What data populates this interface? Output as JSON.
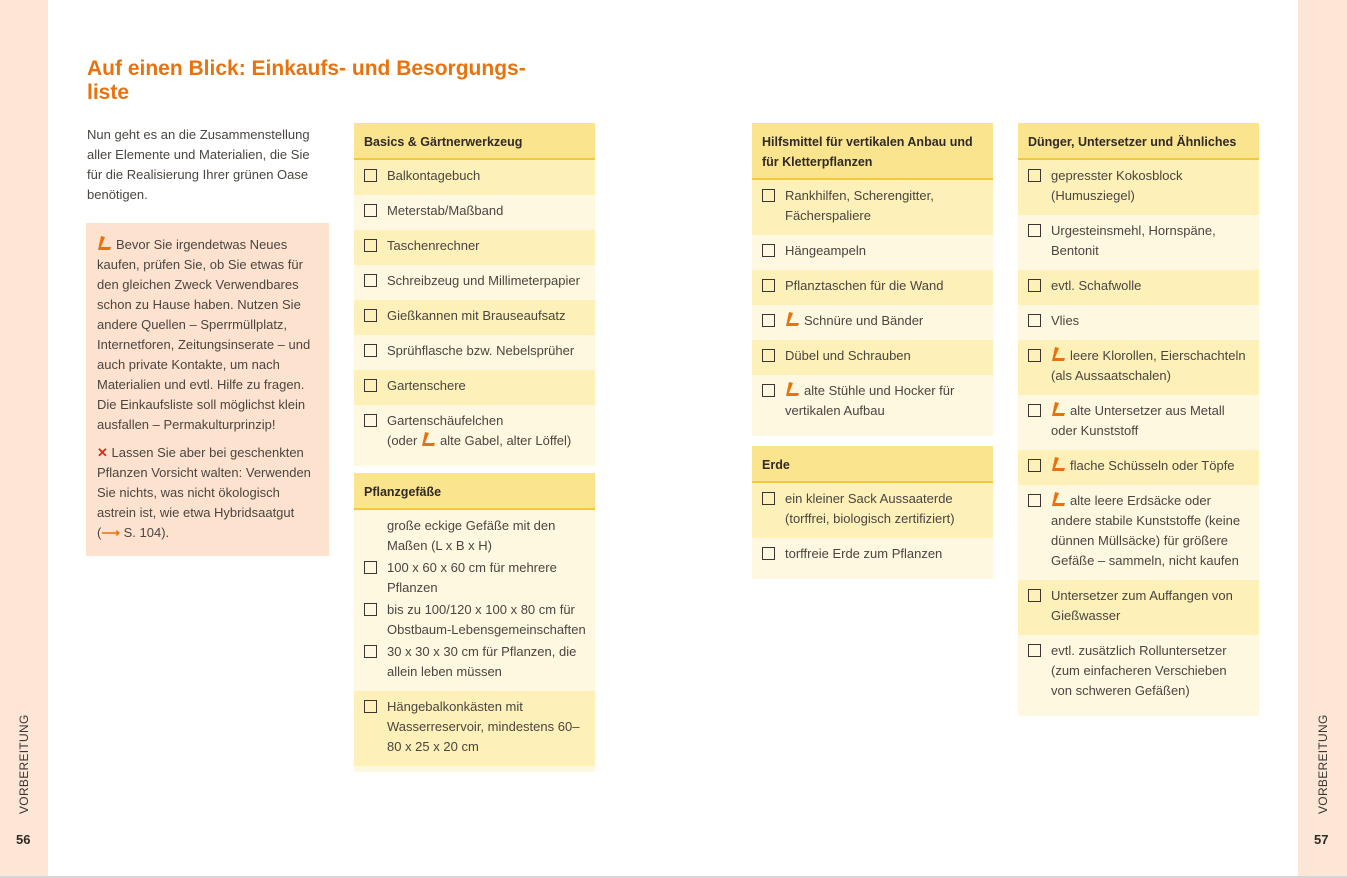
{
  "page_left": {
    "section": "VORBEREITUNG",
    "number": "56"
  },
  "page_right": {
    "section": "VORBEREITUNG",
    "number": "57"
  },
  "title_line1": "Auf einen Blick: Einkaufs- und Besorgungs-",
  "title_line2": "liste",
  "intro": "Nun geht es an die Zusammenstellung aller Elemente und Materialien, die Sie für die Realisierung Ihrer grünen Oase benötigen.",
  "tip": {
    "recycle_text": "Bevor Sie irgendetwas Neues kaufen, prüfen Sie, ob Sie etwas für den gleichen Zweck Verwendbares schon zu Hause haben. Nutzen Sie andere Quellen – Sperrmüllplatz, Internetforen, Zeitungsinserate – und auch private Kontakte, um nach Materialien und evtl. Hilfe zu fragen. Die Einkaufsliste soll möglichst klein ausfallen – Permakulturprinzip!",
    "warning_text": "Lassen Sie aber bei geschenkten Pflanzen Vorsicht walten: Verwenden Sie nichts, was nicht ökologisch astrein ist, wie etwa Hybridsaatgut (",
    "warning_ref": "S. 104)."
  },
  "colors": {
    "accent": "#e8730e",
    "header": "#fbe48e",
    "row_dark": "#fdf0b8",
    "row_light": "#fef8e0",
    "margin": "#fde6d6",
    "tip_bg": "#fde3cf"
  },
  "icons": {
    "recycle": "orange-reuse-icon",
    "warning": "red-x-icon",
    "arrow": "orange-arrow-icon"
  },
  "lists": [
    {
      "title": "Basics & Gärtnerwerkzeug",
      "rows": [
        {
          "items": [
            {
              "text": "Balkontagebuch"
            }
          ]
        },
        {
          "items": [
            {
              "text": "Meterstab/Maßband"
            }
          ]
        },
        {
          "items": [
            {
              "text": "Taschenrechner"
            }
          ]
        },
        {
          "items": [
            {
              "text": "Schreibzeug und Millimeterpapier"
            }
          ]
        },
        {
          "items": [
            {
              "text": "Gießkannen mit Brauseaufsatz"
            }
          ]
        },
        {
          "items": [
            {
              "text": "Sprühflasche bzw. Nebelsprüher"
            }
          ]
        },
        {
          "items": [
            {
              "text": "Gartenschere"
            }
          ]
        },
        {
          "items": [
            {
              "text": "Gartenschäufelchen",
              "sub_pre": "(oder ",
              "sub_recycle": "alte Gabel, alter Löffel)"
            }
          ]
        }
      ]
    },
    {
      "title": "Pflanzgefäße",
      "rows": [
        {
          "items": [
            {
              "text": "große eckige Gefäße mit den Maßen (L x B x H)",
              "nocheck": true
            },
            {
              "text": "100 x 60 x 60 cm für mehrere Pflanzen"
            },
            {
              "text": "bis zu 100/120 x 100 x 80 cm für Obstbaum-Lebensgemeinschaften"
            },
            {
              "text": "30 x 30 x 30 cm für Pflanzen, die allein leben müssen"
            }
          ],
          "tone": "l"
        },
        {
          "items": [
            {
              "text": "Hängebalkonkästen mit Wasserreservoir, mindestens 60–80 x 25 x 20 cm"
            }
          ],
          "tone": "d"
        }
      ]
    },
    {
      "title": "Hilfsmittel für vertikalen Anbau und für Kletterpflanzen",
      "rows": [
        {
          "items": [
            {
              "text": "Rankhilfen, Scherengitter, Fächerspaliere"
            }
          ]
        },
        {
          "items": [
            {
              "text": "Hängeampeln"
            }
          ]
        },
        {
          "items": [
            {
              "text": "Pflanztaschen für die Wand"
            }
          ]
        },
        {
          "items": [
            {
              "text": "Schnüre und Bänder",
              "recycle": true
            }
          ]
        },
        {
          "items": [
            {
              "text": "Dübel und Schrauben"
            }
          ]
        },
        {
          "items": [
            {
              "text": "alte Stühle und Hocker für vertikalen Aufbau",
              "recycle": true
            }
          ]
        }
      ]
    },
    {
      "title": "Erde",
      "rows": [
        {
          "items": [
            {
              "text": "ein kleiner Sack Aussaaterde (torffrei, biologisch zertifiziert)"
            }
          ]
        },
        {
          "items": [
            {
              "text": "torffreie Erde zum Pflanzen"
            }
          ]
        }
      ]
    },
    {
      "title": "Dünger, Untersetzer und Ähnliches",
      "rows": [
        {
          "items": [
            {
              "text": "gepresster Kokosblock (Humusziegel)"
            }
          ]
        },
        {
          "items": [
            {
              "text": "Urgesteinsmehl, Hornspäne, Bentonit"
            }
          ]
        },
        {
          "items": [
            {
              "text": "evtl. Schafwolle"
            }
          ]
        },
        {
          "items": [
            {
              "text": "Vlies"
            }
          ]
        },
        {
          "items": [
            {
              "text": "leere Klorollen, Eierschachteln (als Aussaatschalen)",
              "recycle": true
            }
          ]
        },
        {
          "items": [
            {
              "text": "alte Untersetzer aus Metall oder Kunststoff",
              "recycle": true
            }
          ]
        },
        {
          "items": [
            {
              "text": "flache Schüsseln oder Töpfe",
              "recycle": true
            }
          ]
        },
        {
          "items": [
            {
              "text": "alte leere Erdsäcke oder andere stabile Kunststoffe (keine dünnen Müllsäcke) für größere Gefäße – sammeln, nicht kaufen",
              "recycle": true
            }
          ]
        },
        {
          "items": [
            {
              "text": "Untersetzer zum Auffangen von Gießwasser"
            }
          ]
        },
        {
          "items": [
            {
              "text": "evtl. zusätzlich Rolluntersetzer (zum einfacheren Verschieben von schweren Gefäßen)"
            }
          ]
        }
      ]
    }
  ]
}
